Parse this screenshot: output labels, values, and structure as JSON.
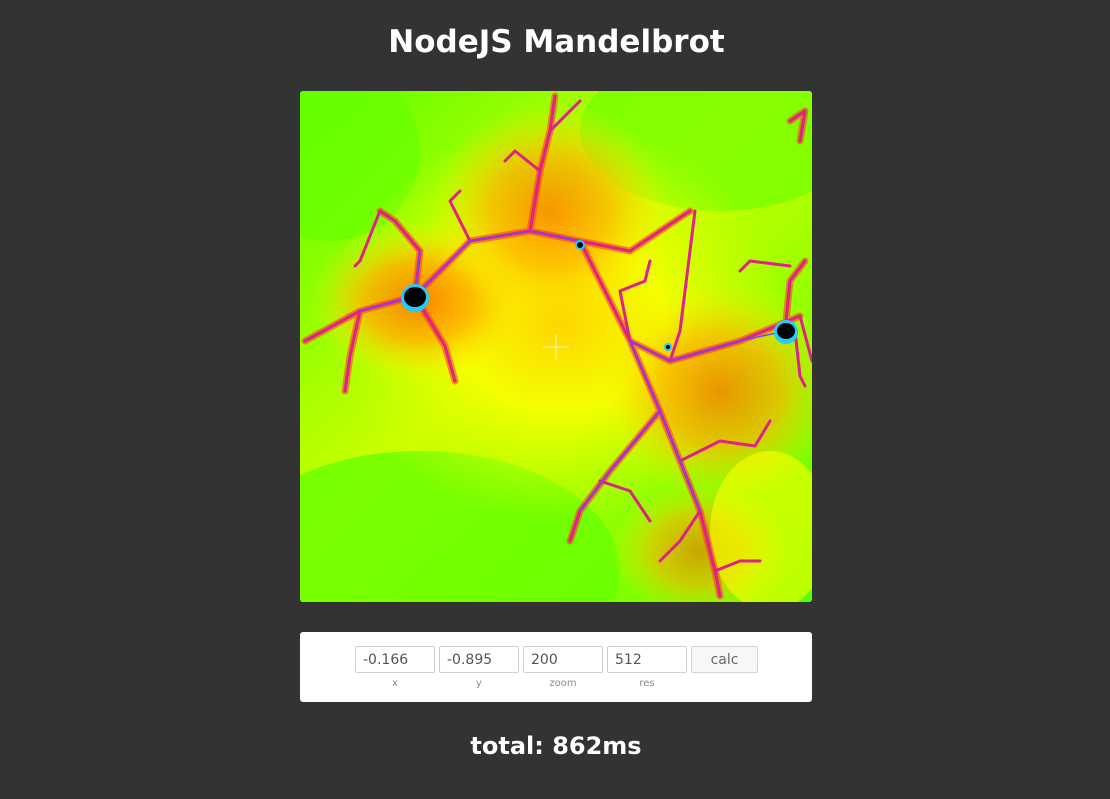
{
  "page": {
    "title": "NodeJS Mandelbrot",
    "background": "#333333"
  },
  "fractal": {
    "palette": {
      "outer": "#55ff00",
      "mid": "#ccff00",
      "near": "#ffee00",
      "hot": "#ff9900",
      "edge": "#ff3322",
      "filament": "#dd2288",
      "deep": "#7744ff",
      "core": "#000000"
    },
    "crosshair_icon": "crosshair-icon"
  },
  "controls": {
    "x": {
      "value": "-0.166",
      "label": "x"
    },
    "y": {
      "value": "-0.895",
      "label": "y"
    },
    "zoom": {
      "value": "200",
      "label": "zoom"
    },
    "res": {
      "value": "512",
      "label": "res"
    },
    "calc_label": "calc"
  },
  "status": {
    "total_text": "total: 862ms"
  }
}
